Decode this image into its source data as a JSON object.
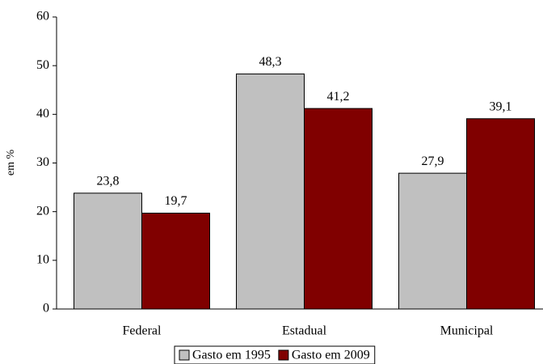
{
  "chart_data": {
    "type": "bar",
    "y_label": "em %",
    "categories": [
      "Federal",
      "Estadual",
      "Municipal"
    ],
    "series": [
      {
        "name": "Gasto em 1995",
        "color": "#c0c0c0",
        "values": [
          23.8,
          48.3,
          27.9
        ],
        "value_labels": [
          "23,8",
          "48,3",
          "27,9"
        ]
      },
      {
        "name": "Gasto em 2009",
        "color": "#800000",
        "values": [
          19.7,
          41.2,
          39.1
        ],
        "value_labels": [
          "19,7",
          "41,2",
          "39,1"
        ]
      }
    ],
    "ylim": [
      0,
      60
    ],
    "yticks": [
      0,
      10,
      20,
      30,
      40,
      50,
      60
    ],
    "grid": false,
    "legend": "bottom"
  }
}
